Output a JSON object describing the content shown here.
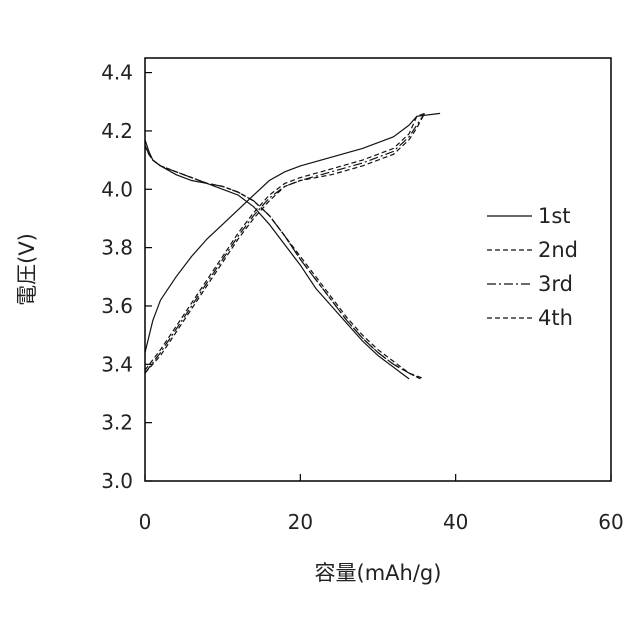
{
  "chart_data": {
    "type": "line",
    "xlabel": "容量(mAh/g)",
    "ylabel": "電圧(V)",
    "xlim": [
      0,
      60
    ],
    "ylim": [
      3.0,
      4.45
    ],
    "xticks": [
      0,
      20,
      40,
      60
    ],
    "xtick_labels": [
      "0",
      "20",
      "40",
      "60"
    ],
    "yticks": [
      3.0,
      3.2,
      3.4,
      3.6,
      3.8,
      4.0,
      4.2,
      4.4
    ],
    "ytick_labels": [
      "3.0",
      "3.2",
      "3.4",
      "3.6",
      "3.8",
      "4.0",
      "4.2",
      "4.4"
    ],
    "grid": false,
    "legend_position": "right",
    "series": [
      {
        "name": "1st",
        "dash": "solid",
        "charge": [
          [
            0,
            3.44
          ],
          [
            1,
            3.55
          ],
          [
            2,
            3.62
          ],
          [
            4,
            3.7
          ],
          [
            6,
            3.77
          ],
          [
            8,
            3.83
          ],
          [
            10,
            3.88
          ],
          [
            12,
            3.93
          ],
          [
            14,
            3.98
          ],
          [
            16,
            4.03
          ],
          [
            18,
            4.06
          ],
          [
            20,
            4.08
          ],
          [
            24,
            4.11
          ],
          [
            28,
            4.14
          ],
          [
            32,
            4.18
          ],
          [
            34,
            4.22
          ],
          [
            35,
            4.25
          ],
          [
            38,
            4.26
          ]
        ],
        "discharge": [
          [
            0,
            4.17
          ],
          [
            0.5,
            4.13
          ],
          [
            1,
            4.1
          ],
          [
            2,
            4.08
          ],
          [
            4,
            4.05
          ],
          [
            6,
            4.03
          ],
          [
            8,
            4.02
          ],
          [
            10,
            4.0
          ],
          [
            12,
            3.98
          ],
          [
            14,
            3.94
          ],
          [
            16,
            3.88
          ],
          [
            18,
            3.81
          ],
          [
            20,
            3.74
          ],
          [
            22,
            3.66
          ],
          [
            24,
            3.6
          ],
          [
            26,
            3.54
          ],
          [
            28,
            3.48
          ],
          [
            30,
            3.43
          ],
          [
            32,
            3.39
          ],
          [
            33,
            3.37
          ],
          [
            34,
            3.35
          ]
        ]
      },
      {
        "name": "2nd",
        "dash": "dashed",
        "charge": [
          [
            0,
            3.38
          ],
          [
            2,
            3.45
          ],
          [
            4,
            3.53
          ],
          [
            6,
            3.61
          ],
          [
            8,
            3.69
          ],
          [
            10,
            3.77
          ],
          [
            12,
            3.85
          ],
          [
            14,
            3.92
          ],
          [
            16,
            3.98
          ],
          [
            18,
            4.02
          ],
          [
            20,
            4.04
          ],
          [
            24,
            4.07
          ],
          [
            28,
            4.1
          ],
          [
            32,
            4.14
          ],
          [
            34,
            4.19
          ],
          [
            35,
            4.25
          ],
          [
            36,
            4.26
          ]
        ],
        "discharge": [
          [
            0,
            4.15
          ],
          [
            0.5,
            4.12
          ],
          [
            1,
            4.1
          ],
          [
            2,
            4.08
          ],
          [
            4,
            4.06
          ],
          [
            6,
            4.04
          ],
          [
            8,
            4.02
          ],
          [
            10,
            4.01
          ],
          [
            12,
            3.99
          ],
          [
            14,
            3.96
          ],
          [
            16,
            3.91
          ],
          [
            18,
            3.84
          ],
          [
            20,
            3.77
          ],
          [
            22,
            3.7
          ],
          [
            24,
            3.63
          ],
          [
            26,
            3.56
          ],
          [
            28,
            3.5
          ],
          [
            30,
            3.45
          ],
          [
            32,
            3.41
          ],
          [
            34,
            3.37
          ],
          [
            36,
            3.35
          ]
        ]
      },
      {
        "name": "3rd",
        "dash": "dashdot",
        "charge": [
          [
            0,
            3.37
          ],
          [
            2,
            3.44
          ],
          [
            4,
            3.52
          ],
          [
            6,
            3.6
          ],
          [
            8,
            3.68
          ],
          [
            10,
            3.76
          ],
          [
            12,
            3.84
          ],
          [
            14,
            3.91
          ],
          [
            16,
            3.97
          ],
          [
            18,
            4.01
          ],
          [
            20,
            4.03
          ],
          [
            24,
            4.06
          ],
          [
            28,
            4.09
          ],
          [
            32,
            4.13
          ],
          [
            34,
            4.18
          ],
          [
            35,
            4.22
          ],
          [
            36,
            4.26
          ]
        ],
        "discharge": [
          [
            0,
            4.15
          ],
          [
            0.5,
            4.12
          ],
          [
            1,
            4.1
          ],
          [
            2,
            4.08
          ],
          [
            4,
            4.06
          ],
          [
            6,
            4.04
          ],
          [
            8,
            4.02
          ],
          [
            10,
            4.01
          ],
          [
            12,
            3.99
          ],
          [
            14,
            3.96
          ],
          [
            16,
            3.91
          ],
          [
            18,
            3.84
          ],
          [
            20,
            3.76
          ],
          [
            22,
            3.69
          ],
          [
            24,
            3.62
          ],
          [
            26,
            3.55
          ],
          [
            28,
            3.49
          ],
          [
            30,
            3.44
          ],
          [
            32,
            3.4
          ],
          [
            34,
            3.37
          ],
          [
            35.5,
            3.35
          ]
        ]
      },
      {
        "name": "4th",
        "dash": "dashed",
        "charge": [
          [
            0,
            3.37
          ],
          [
            2,
            3.43
          ],
          [
            4,
            3.51
          ],
          [
            6,
            3.59
          ],
          [
            8,
            3.67
          ],
          [
            10,
            3.75
          ],
          [
            12,
            3.83
          ],
          [
            14,
            3.9
          ],
          [
            16,
            3.96
          ],
          [
            18,
            4.01
          ],
          [
            20,
            4.03
          ],
          [
            24,
            4.05
          ],
          [
            28,
            4.08
          ],
          [
            32,
            4.12
          ],
          [
            34,
            4.17
          ],
          [
            35,
            4.21
          ],
          [
            36,
            4.26
          ]
        ],
        "discharge": [
          [
            0,
            4.15
          ],
          [
            0.5,
            4.12
          ],
          [
            1,
            4.1
          ],
          [
            2,
            4.08
          ],
          [
            4,
            4.06
          ],
          [
            6,
            4.04
          ],
          [
            8,
            4.02
          ],
          [
            10,
            4.01
          ],
          [
            12,
            3.99
          ],
          [
            14,
            3.96
          ],
          [
            16,
            3.91
          ],
          [
            18,
            3.84
          ],
          [
            20,
            3.76
          ],
          [
            22,
            3.69
          ],
          [
            24,
            3.62
          ],
          [
            26,
            3.55
          ],
          [
            28,
            3.49
          ],
          [
            30,
            3.44
          ],
          [
            32,
            3.4
          ],
          [
            34,
            3.37
          ],
          [
            35.5,
            3.35
          ]
        ]
      }
    ]
  }
}
